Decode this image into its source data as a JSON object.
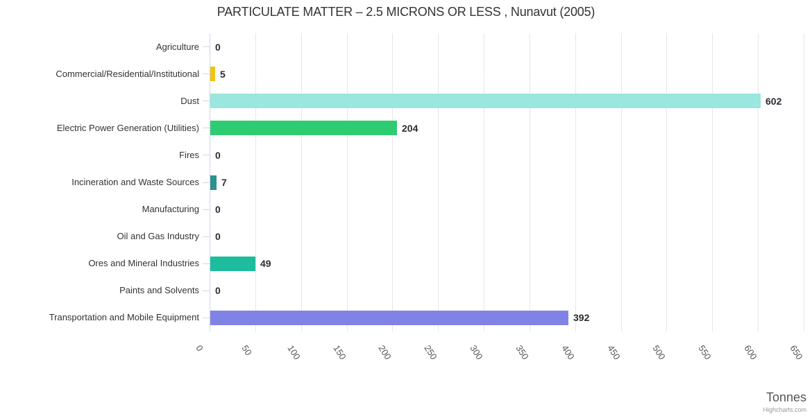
{
  "credits": "Highcharts.com",
  "chart_data": {
    "type": "bar",
    "orientation": "horizontal",
    "title": "PARTICULATE MATTER – 2.5 MICRONS OR LESS , Nunavut (2005)",
    "xlabel": "Tonnes",
    "ylabel": "",
    "categories": [
      "Agriculture",
      "Commercial/Residential/Institutional",
      "Dust",
      "Electric Power Generation (Utilities)",
      "Fires",
      "Incineration and Waste Sources",
      "Manufacturing",
      "Oil and Gas Industry",
      "Ores and Mineral Industries",
      "Paints and Solvents",
      "Transportation and Mobile Equipment"
    ],
    "values": [
      0,
      5,
      602,
      204,
      0,
      7,
      0,
      0,
      49,
      0,
      392
    ],
    "bar_colors": [
      null,
      "#f0c410",
      "#99e7de",
      "#2ecc71",
      null,
      "#2e918f",
      null,
      null,
      "#1cbc9c",
      null,
      "#8083e5"
    ],
    "xlim": [
      0,
      650
    ],
    "xticks": [
      0,
      50,
      100,
      150,
      200,
      250,
      300,
      350,
      400,
      450,
      500,
      550,
      600,
      650
    ],
    "grid": "vertical-only",
    "legend": "none",
    "value_labels": true
  },
  "colors": {
    "background": "#ffffff",
    "axis_line": "#ccd6eb",
    "grid_line": "#e6e6e6",
    "category_label": "#333333",
    "tick_label": "#555555",
    "value_label": "#2b2b33",
    "title": "#333333",
    "axis_title": "#555555",
    "credits": "#999999"
  }
}
